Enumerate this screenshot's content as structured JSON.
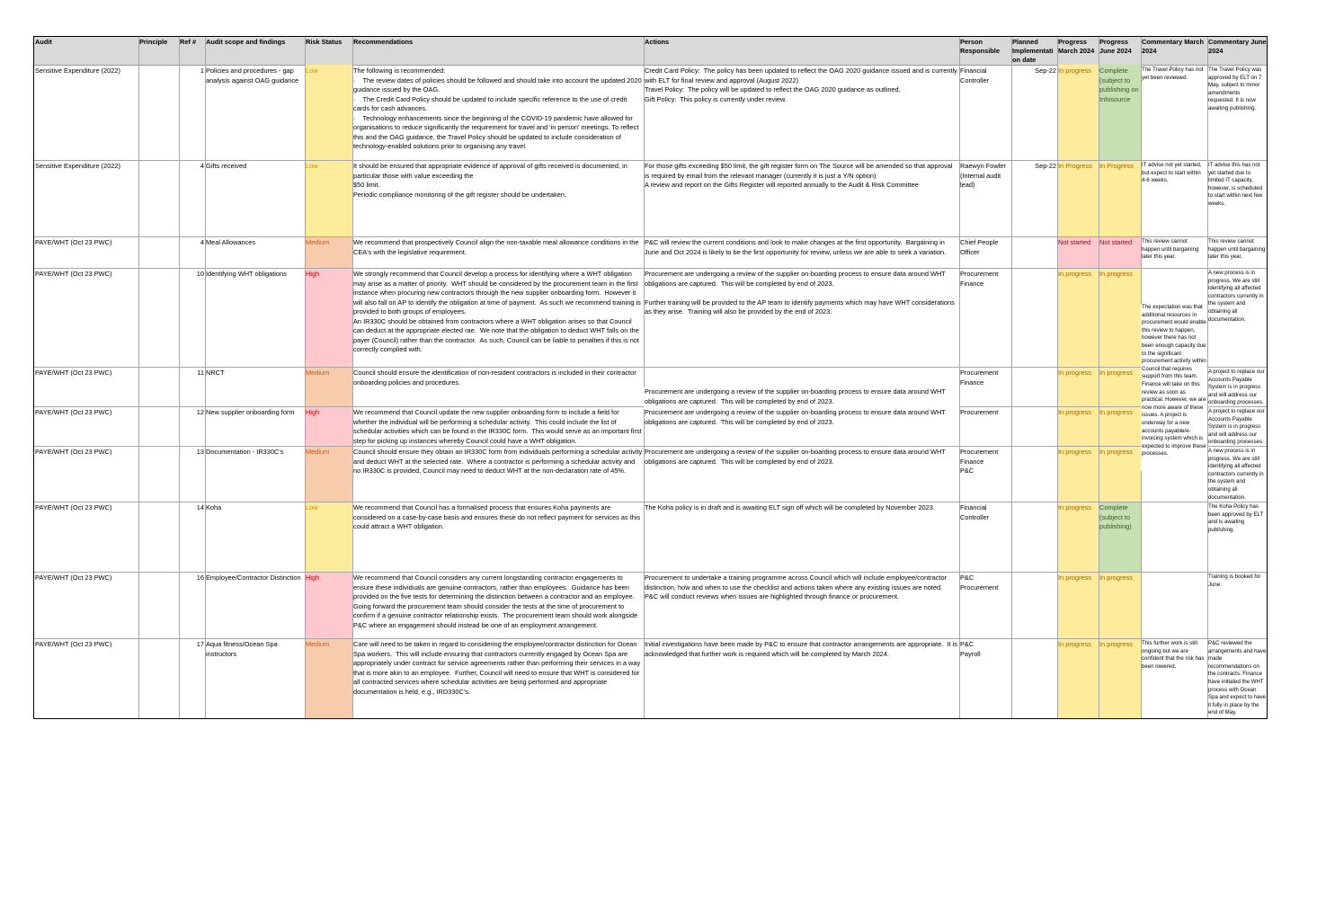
{
  "columns": {
    "audit": "Audit",
    "principle": "Principle",
    "ref": "Ref #",
    "scope": "Audit scope and findings",
    "risk": "Risk Status",
    "recs": "Recommendations",
    "actions": "Actions",
    "person": "Person Responsible",
    "planned": "Planned Implementati on date",
    "prog_march": "Progress March 2024",
    "prog_june": "Progress June 2024",
    "comm_march": "Commentary March 2024",
    "comm_june": "Commentary June 2024"
  },
  "colors": {
    "low": "#fdeb9c",
    "medium": "#f8cbad",
    "high": "#ffc7ce",
    "in_progress": "#ffeb9c",
    "complete": "#c6e0b4",
    "not_started": "#ffc7ce",
    "low_text": "#c09100",
    "medium_text": "#c65911",
    "high_text": "#c00000",
    "progress_text": "#9c6500",
    "not_started_text": "#9c0006",
    "complete_text": "#375623"
  },
  "rows": [
    {
      "audit": "Sensitive Expenditure (2022)",
      "ref": "1",
      "scope": "Policies and procedures - gap analysis against OAG guidance",
      "risk": "Low",
      "recs": "The following is recommended:\n·    The review dates of policies should be followed and should take into account the updated 2020 guidance issued by the OAG.\n·    The Credit Card Policy should be updated to include specific reference to the use of credit cards for cash advances.\n·    Technology enhancements since the beginning of the COVID-19 pandemic have allowed for organisations to reduce significantly the requirement for travel and 'in person' meetings. To reflect this and the OAG guidance, the Travel Policy should be updated to include consideration of technology-enabled solutions prior to organising any travel.",
      "actions": "Credit Card Policy:  The policy has been updated to reflect the OAG 2020 guidance issued and is currently with ELT for final review and approval (August 2022)\nTravel Policy:  The policy will be updated to reflect the OAG 2020 guidance as outlined.\nGift Policy:  This policy is currently under review.",
      "person": "Financial Controller",
      "planned": "Sep-22",
      "prog_march": "In progress",
      "prog_june": "Complete (subject to publishing on Infosource",
      "comm_march": "The Travel Policy has not yet been reviewed.",
      "comm_june": "The Travel Policy was approved by ELT on 7 May, subject to minor amendments requested. It is now awaiting publishing."
    },
    {
      "audit": "Sensitive Expenditure (2022)",
      "ref": "4",
      "scope": "Gifts received",
      "risk": "Low",
      "recs": "It should be ensured that appropriate evidence of approval of gifts received is documented, in particular those with value exceeding the\n$50 limit.\nPeriodic compliance monitoring of the gift register should be undertaken.",
      "actions": "For those gifts exceeding $50 limit, the gift register form on The Source will be amended so that approval is required by email from the relevant manager (currently it is just a Y/N option)\nA review and report on the Gifts Register will reported annually to the Audit & Risk Committee",
      "person": "Raewyn Fowler (Internal audit lead)",
      "planned": "Sep-22",
      "prog_march": "In Progress",
      "prog_june": "In Progress",
      "comm_march": "IT advise not yet started, but expect to start within 4-6 weeks.",
      "comm_june": "IT advise this has not yet started due to limited IT capacity, however, is scheduled to start within next few weeks."
    },
    {
      "audit": "PAYE/WHT (Oct 23 PWC)",
      "ref": "4",
      "scope": "Meal Allowances",
      "risk": "Medium",
      "recs": "We recommend that prospectively Council align the non-taxable meal allowance conditions in the CEA's with the legislative requirement.",
      "actions": "P&C will review the current conditions and look to make changes at the first opportunity.  Bargaining in June and Oct 2024 is likely to be the first opportunity for review, unless we are able to seek a variation.",
      "person": "Chief People Officer",
      "planned": "",
      "prog_march": "Not started",
      "prog_june": "Not started",
      "comm_march": "This review cannot happen until bargaining later this year.",
      "comm_june": "This review cannot happen until bargaining later this year."
    },
    {
      "audit": "PAYE/WHT (Oct 23 PWC)",
      "ref": "10",
      "scope": "Identifying WHT obligations",
      "risk": "High",
      "recs": "We strongly recommend that Council develop a process for identifying where a WHT obligation may arise as a matter of priority.  WHT should be considered by the procurement team in the first instance when procuring new contractors through the new supplier onboarding form.  However it will also fall on AP to identify the obligation at time of payment.  As such we recommend training is provided to both groups of employees.\nAn IR330C should be obtained from contractors where a WHT obligation arises so that Council can deduct at the appropriate elected rae.  We note that the obligation to deduct WHT falls on the payer (Council) rather than the contractor.  As such, Council can be liable to penalties if this is not correctly complied with.",
      "actions": "Procurement are undergoing a review of the supplier on-boarding process to ensure data around WHT obligations are captured.  This will be completed by end of 2023.\n\nFurther training will be provided to the AP team to identify payments which may have WHT considerations as they arise.  Training will also be provided by the end of 2023.",
      "person": "Procurement\nFinance",
      "planned": "",
      "prog_march": "In progress",
      "prog_june": "In progress",
      "comm_march": "",
      "comm_june": "A new process is in progress. We are still identifying all affected contractors currently in the system and obtaining all documentation."
    },
    {
      "audit": "PAYE/WHT (Oct 23 PWC)",
      "ref": "11",
      "scope": "NRCT",
      "risk": "Medium",
      "recs": "Council should ensure the identification of non-resident contractors is included in their contractor onboarding policies and procedures.",
      "actions": "",
      "person": "Procurement\nFinance",
      "planned": "",
      "prog_march": "In progress",
      "prog_june": "In progress",
      "comm_march": "",
      "comm_june": "A project to replace our Accounts Payable System is in progress and will address our onboarding processes."
    },
    {
      "audit": "PAYE/WHT (Oct 23 PWC)",
      "ref": "12",
      "scope": "New supplier onboarding form",
      "risk": "High",
      "recs": "We recommend that Council update the new supplier onboarding form to include a field for whether the individual will be performing a schedular activity.  This could include the list of schedular activities which can be found in the IR330C form.  This would serve as an important first step for picking up instances whereby Council could have a WHT obligation.",
      "actions": "Procurement are undergoing a review of the supplier on-boarding process to ensure data around WHT obligations are captured.  This will be completed by end of 2023.",
      "person": "Procurement",
      "planned": "",
      "prog_march": "In progress",
      "prog_june": "In progress",
      "comm_march": "",
      "comm_june": "A project to replace our Accounts Payable System is in progress and will address our onboarding processes."
    },
    {
      "audit": "PAYE/WHT (Oct 23 PWC)",
      "ref": "13",
      "scope": "Documentation - IR330C's",
      "risk": "Medium",
      "recs": "Council should ensure they obtain an IR330C form from individuals performing a schedular activity and deduct WHT at the selected rate.  Where a contractor is performing a schedular activity and no IR330C is provided, Council may need to deduct WHT at the non-declaration rate of 45%.",
      "actions": "Procurement are undergoing a review of the supplier on-boarding process to ensure data around WHT obligations are captured.  This will be completed by end of 2023.",
      "person": "Procurement\nFinance\nP&C",
      "planned": "",
      "prog_march": "In progress",
      "prog_june": "In progress",
      "comm_march": "",
      "comm_june": "A new process is in progress. We are still identifying all affected contractors currently in the system and obtaining all documentation."
    },
    {
      "audit": "PAYE/WHT (Oct 23 PWC)",
      "ref": "14",
      "scope": "Koha",
      "risk": "Low",
      "recs": "We recommend that Council has a formalised process that ensures Koha payments are considered on a case-by-case basis and ensures these do not reflect payment for services as this could attract a WHT obligation.",
      "actions": "The Koha policy is in draft and is awaiting ELT sign off which will be completed by November 2023.",
      "person": "Financial Controller",
      "planned": "",
      "prog_march": "In progress",
      "prog_june": "Complete (subject to publishing)",
      "comm_march": "",
      "comm_june": "The Koha Policy has been approved by ELT and is awaiting publishing."
    },
    {
      "audit": "PAYE/WHT (Oct 23 PWC)",
      "ref": "16",
      "scope": "Employee/Contractor Distinction",
      "risk": "High",
      "recs": "We recommend that Council considers any current longstanding contractor engagements to ensure these individuals are genuine contractors, rather than employees.  Guidance has been provided on the five tests for determining the distinction between a contractor and an employee.  Going forward the procurement team should consider the tests at the time of procurement to confirm if a genuine contractor relationship exists.  The procurement team should work alongside P&C where an engagement should instead be one of an employment arrangement.",
      "actions": "Procurement to undertake a training programme across Council which will include employee/contractor distinction, how and when to use the checklist and actions taken where any existing issues are noted.  P&C will conduct reviews when issues are highlighted through finance or procurement.",
      "person": "P&C\nProcurement",
      "planned": "",
      "prog_march": "In progress",
      "prog_june": "In progress",
      "comm_march": "",
      "comm_june": "Training is booked for June."
    },
    {
      "audit": "PAYE/WHT (Oct 23 PWC)",
      "ref": "17",
      "scope": "Aqua fitness/Ocean Spa instructors",
      "risk": "Medium",
      "recs": "Care will need to be taken in regard to considering the employee/contractor distinction for Ocean Spa workers.  This will include ensuring that contractors currently engaged by Ocean Spa are appropriately under contract for service agreements rather than performing their services in a way that is more akin to an employee.  Further, Council will need to ensure that WHT is considered for all contracted services where schedular activities are being performed and appropriate documentation is held, e.g., IRD330C's.",
      "actions": "Initial investigations have been made by P&C to ensure that contractor arrangements are appropriate.  It is acknowledged that further work is required which will be completed by March 2024.",
      "person": "P&C\nPayroll",
      "planned": "",
      "prog_march": "In progress",
      "prog_june": "In progress",
      "comm_march": "This further work is still ongoing but we are confident that the risk has been lowered.",
      "comm_june": "P&C reviewed the arrangements and have made recommendations on the contracts. Finance have initiated the WHT process with Ocean Spa and expect to have it fully in place by the end of May."
    }
  ],
  "merged_actions": "Procurement are undergoing a review of the supplier on-boarding process to ensure data around WHT obligations are captured.  This will be completed by end of 2023.",
  "merged_commentary_march": "The expectation was that additional resources in procurement would enable this review to happen, however there has not been enough capacity due to the significant procurement activity within Council that requires support from this team. Finance will take on this review as soon as practical. However, we are now more aware of these issues. A project is underway for a new accounts payable/e-invoicing system which is expected to improve these processes."
}
